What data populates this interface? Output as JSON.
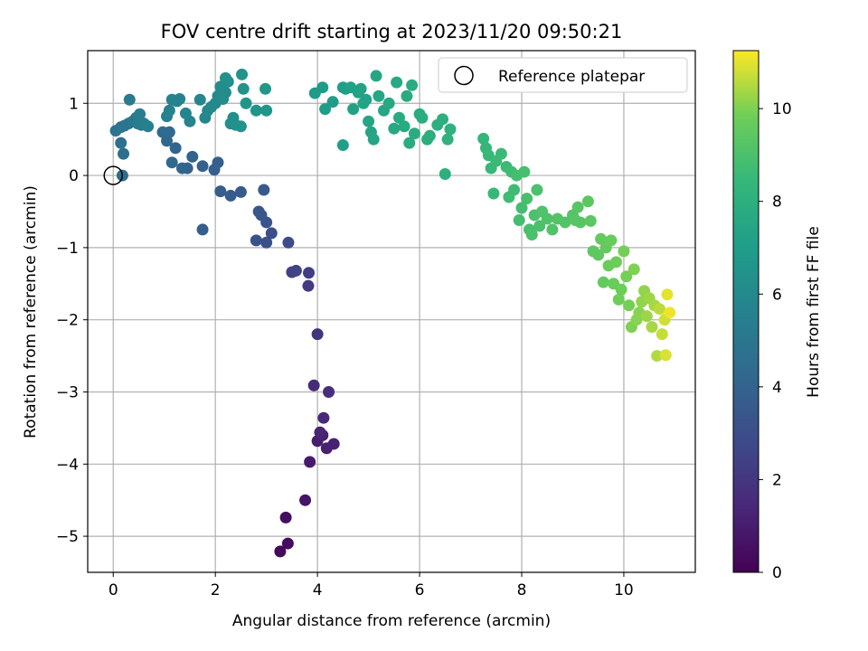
{
  "chart_data": {
    "type": "scatter",
    "title": "FOV centre drift starting at 2023/11/20 09:50:21",
    "xlabel": "Angular distance from reference (arcmin)",
    "ylabel": "Rotation from reference (arcmin)",
    "colorbar_label": "Hours from first FF file",
    "xlim": [
      -0.5,
      11.4
    ],
    "ylim": [
      -5.5,
      1.73
    ],
    "clim": [
      0,
      11.25
    ],
    "x_ticks": [
      0,
      2,
      4,
      6,
      8,
      10
    ],
    "y_ticks": [
      -5,
      -4,
      -3,
      -2,
      -1,
      0,
      1
    ],
    "colorbar_ticks": [
      0,
      2,
      4,
      6,
      8,
      10
    ],
    "colormap": "viridis",
    "grid": true,
    "legend_position": "top-right",
    "legend_label": "Reference platepar",
    "reference_point": [
      0,
      0
    ],
    "points": [
      [
        3.27,
        -5.21,
        0.3
      ],
      [
        3.42,
        -5.1,
        0.4
      ],
      [
        3.38,
        -4.74,
        0.5
      ],
      [
        3.76,
        -4.5,
        0.7
      ],
      [
        3.85,
        -3.97,
        0.9
      ],
      [
        4.0,
        -3.68,
        1.0
      ],
      [
        4.1,
        -3.6,
        1.1
      ],
      [
        4.18,
        -3.78,
        1.1
      ],
      [
        4.32,
        -3.72,
        1.2
      ],
      [
        4.05,
        -3.56,
        1.3
      ],
      [
        4.12,
        -3.36,
        1.4
      ],
      [
        3.93,
        -2.91,
        1.5
      ],
      [
        4.22,
        -3.0,
        1.6
      ],
      [
        4.0,
        -2.2,
        1.9
      ],
      [
        3.82,
        -1.53,
        2.2
      ],
      [
        3.83,
        -1.35,
        2.3
      ],
      [
        3.5,
        -1.34,
        2.5
      ],
      [
        3.58,
        -1.32,
        2.6
      ],
      [
        3.43,
        -0.93,
        2.8
      ],
      [
        3.1,
        -0.8,
        3.0
      ],
      [
        3.0,
        -0.93,
        3.1
      ],
      [
        2.8,
        -0.9,
        3.2
      ],
      [
        3.0,
        -0.65,
        3.3
      ],
      [
        2.9,
        -0.55,
        3.4
      ],
      [
        2.85,
        -0.5,
        3.4
      ],
      [
        2.95,
        -0.2,
        3.5
      ],
      [
        2.5,
        -0.23,
        3.6
      ],
      [
        2.3,
        -0.28,
        3.6
      ],
      [
        2.1,
        -0.22,
        3.7
      ],
      [
        1.75,
        -0.75,
        3.7
      ],
      [
        2.05,
        0.18,
        3.8
      ],
      [
        1.98,
        0.08,
        3.9
      ],
      [
        1.75,
        0.13,
        3.9
      ],
      [
        1.55,
        0.26,
        4.0
      ],
      [
        1.45,
        0.1,
        4.0
      ],
      [
        1.35,
        0.1,
        4.1
      ],
      [
        1.22,
        0.38,
        4.1
      ],
      [
        1.15,
        0.18,
        4.2
      ],
      [
        1.05,
        0.48,
        4.2
      ],
      [
        0.97,
        0.6,
        4.3
      ],
      [
        1.1,
        0.6,
        4.3
      ],
      [
        0.18,
        0.0,
        4.5
      ],
      [
        0.2,
        0.3,
        4.6
      ],
      [
        0.15,
        0.45,
        4.7
      ],
      [
        0.05,
        0.62,
        4.8
      ],
      [
        0.15,
        0.67,
        4.9
      ],
      [
        0.22,
        0.69,
        5.0
      ],
      [
        0.3,
        0.72,
        5.0
      ],
      [
        0.38,
        0.75,
        5.1
      ],
      [
        0.45,
        0.8,
        5.1
      ],
      [
        0.55,
        0.7,
        5.2
      ],
      [
        0.32,
        1.05,
        5.3
      ],
      [
        0.48,
        0.72,
        5.3
      ],
      [
        0.52,
        0.85,
        5.4
      ],
      [
        0.6,
        0.72,
        5.4
      ],
      [
        0.68,
        0.68,
        5.5
      ],
      [
        1.05,
        0.82,
        5.5
      ],
      [
        1.1,
        0.9,
        5.6
      ],
      [
        1.25,
        1.03,
        5.6
      ],
      [
        1.15,
        1.05,
        5.7
      ],
      [
        1.3,
        1.06,
        5.7
      ],
      [
        1.42,
        0.86,
        5.8
      ],
      [
        1.5,
        0.75,
        5.8
      ],
      [
        1.7,
        1.05,
        5.9
      ],
      [
        1.8,
        0.8,
        5.9
      ],
      [
        1.85,
        0.9,
        6.0
      ],
      [
        1.92,
        0.95,
        6.0
      ],
      [
        2.0,
        1.0,
        6.0
      ],
      [
        2.05,
        1.1,
        6.1
      ],
      [
        2.1,
        1.23,
        6.1
      ],
      [
        2.15,
        1.06,
        6.2
      ],
      [
        2.2,
        1.15,
        6.2
      ],
      [
        2.25,
        1.3,
        6.3
      ],
      [
        2.3,
        0.72,
        6.3
      ],
      [
        2.35,
        0.8,
        6.3
      ],
      [
        2.2,
        1.35,
        6.4
      ],
      [
        2.4,
        0.7,
        6.4
      ],
      [
        2.5,
        0.68,
        6.5
      ],
      [
        2.52,
        1.4,
        6.5
      ],
      [
        2.55,
        1.2,
        6.5
      ],
      [
        2.6,
        1.0,
        6.6
      ],
      [
        2.8,
        0.9,
        6.6
      ],
      [
        2.98,
        1.2,
        6.7
      ],
      [
        3.0,
        0.9,
        6.7
      ],
      [
        3.95,
        1.14,
        6.9
      ],
      [
        4.1,
        1.22,
        6.9
      ],
      [
        4.15,
        0.92,
        7.0
      ],
      [
        4.3,
        1.02,
        7.0
      ],
      [
        4.5,
        0.42,
        7.1
      ],
      [
        4.5,
        1.22,
        7.1
      ],
      [
        4.55,
        1.2,
        7.1
      ],
      [
        4.65,
        1.22,
        7.2
      ],
      [
        4.7,
        0.92,
        7.2
      ],
      [
        4.8,
        1.15,
        7.2
      ],
      [
        4.85,
        1.2,
        7.3
      ],
      [
        4.9,
        1.0,
        7.3
      ],
      [
        4.95,
        1.05,
        7.3
      ],
      [
        5.0,
        0.75,
        7.4
      ],
      [
        5.05,
        0.6,
        7.4
      ],
      [
        5.1,
        0.5,
        7.4
      ],
      [
        5.15,
        1.38,
        7.5
      ],
      [
        5.2,
        1.1,
        7.5
      ],
      [
        5.3,
        0.9,
        7.5
      ],
      [
        5.4,
        1.0,
        7.6
      ],
      [
        5.5,
        0.65,
        7.6
      ],
      [
        5.55,
        1.29,
        7.6
      ],
      [
        5.6,
        0.8,
        7.7
      ],
      [
        5.7,
        0.68,
        7.7
      ],
      [
        5.75,
        1.1,
        7.7
      ],
      [
        5.8,
        0.45,
        7.8
      ],
      [
        5.85,
        1.25,
        7.8
      ],
      [
        5.9,
        0.58,
        7.8
      ],
      [
        6.0,
        0.85,
        7.8
      ],
      [
        6.05,
        0.8,
        7.9
      ],
      [
        6.15,
        0.5,
        7.9
      ],
      [
        6.2,
        0.55,
        7.9
      ],
      [
        6.35,
        0.7,
        8.0
      ],
      [
        6.45,
        0.78,
        8.0
      ],
      [
        6.5,
        0.02,
        8.0
      ],
      [
        6.55,
        0.5,
        8.1
      ],
      [
        6.6,
        0.64,
        8.1
      ],
      [
        7.25,
        0.51,
        8.4
      ],
      [
        7.3,
        0.38,
        8.4
      ],
      [
        7.35,
        0.28,
        8.5
      ],
      [
        7.4,
        0.1,
        8.5
      ],
      [
        7.45,
        -0.25,
        8.5
      ],
      [
        7.5,
        0.2,
        8.6
      ],
      [
        7.6,
        0.3,
        8.6
      ],
      [
        7.7,
        0.12,
        8.6
      ],
      [
        7.75,
        -0.3,
        8.7
      ],
      [
        7.8,
        0.05,
        8.7
      ],
      [
        7.85,
        -0.2,
        8.7
      ],
      [
        7.9,
        0.0,
        8.8
      ],
      [
        7.95,
        -0.62,
        8.8
      ],
      [
        8.0,
        -0.45,
        8.8
      ],
      [
        8.05,
        0.05,
        8.9
      ],
      [
        8.1,
        -0.32,
        8.9
      ],
      [
        8.15,
        -0.75,
        8.9
      ],
      [
        8.2,
        -0.82,
        9.0
      ],
      [
        8.25,
        -0.55,
        9.0
      ],
      [
        8.3,
        -0.2,
        9.0
      ],
      [
        8.35,
        -0.7,
        9.0
      ],
      [
        8.4,
        -0.5,
        9.1
      ],
      [
        8.5,
        -0.6,
        9.1
      ],
      [
        8.6,
        -0.75,
        9.1
      ],
      [
        8.7,
        -0.6,
        9.2
      ],
      [
        8.85,
        -0.65,
        9.2
      ],
      [
        9.0,
        -0.55,
        9.2
      ],
      [
        9.05,
        -0.62,
        9.3
      ],
      [
        9.1,
        -0.44,
        9.3
      ],
      [
        9.15,
        -0.65,
        9.3
      ],
      [
        9.3,
        -0.36,
        9.4
      ],
      [
        9.35,
        -0.63,
        9.4
      ],
      [
        9.4,
        -1.05,
        9.5
      ],
      [
        9.5,
        -1.1,
        9.5
      ],
      [
        9.55,
        -0.88,
        9.6
      ],
      [
        9.6,
        -1.48,
        9.6
      ],
      [
        9.65,
        -1.0,
        9.6
      ],
      [
        9.7,
        -1.25,
        9.7
      ],
      [
        9.75,
        -0.9,
        9.7
      ],
      [
        9.8,
        -1.5,
        9.7
      ],
      [
        9.85,
        -1.2,
        9.8
      ],
      [
        9.9,
        -1.72,
        9.8
      ],
      [
        9.95,
        -1.58,
        9.8
      ],
      [
        10.0,
        -1.05,
        9.9
      ],
      [
        10.05,
        -1.4,
        9.9
      ],
      [
        10.1,
        -1.8,
        9.9
      ],
      [
        10.15,
        -2.1,
        10.0
      ],
      [
        10.2,
        -1.3,
        10.0
      ],
      [
        10.25,
        -2.0,
        10.1
      ],
      [
        10.3,
        -1.9,
        10.1
      ],
      [
        10.35,
        -1.75,
        10.2
      ],
      [
        10.4,
        -1.6,
        10.2
      ],
      [
        10.45,
        -1.95,
        10.3
      ],
      [
        10.5,
        -1.7,
        10.3
      ],
      [
        10.55,
        -2.1,
        10.4
      ],
      [
        10.6,
        -1.8,
        10.4
      ],
      [
        10.65,
        -2.5,
        10.5
      ],
      [
        10.7,
        -1.85,
        10.6
      ],
      [
        10.75,
        -2.2,
        10.7
      ],
      [
        10.8,
        -2.0,
        10.8
      ],
      [
        10.82,
        -2.49,
        10.9
      ],
      [
        10.85,
        -1.65,
        11.0
      ],
      [
        10.9,
        -1.9,
        11.1
      ]
    ]
  }
}
